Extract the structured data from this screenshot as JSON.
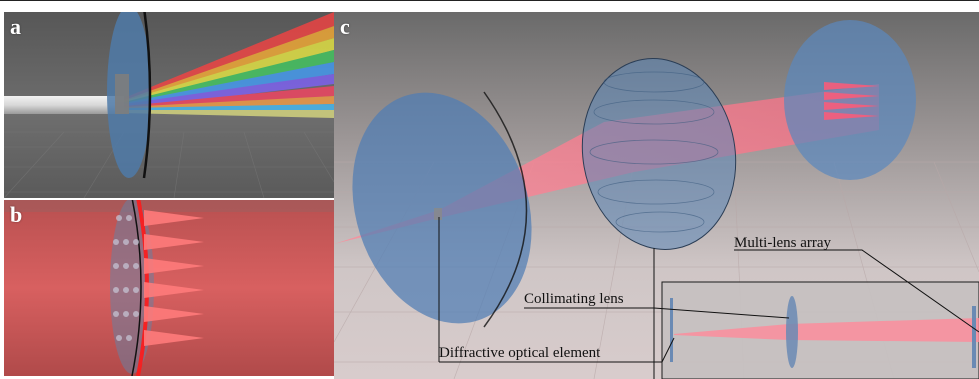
{
  "figure": {
    "panels": [
      {
        "id": "a",
        "label": "a"
      },
      {
        "id": "b",
        "label": "b"
      },
      {
        "id": "c",
        "label": "c"
      }
    ],
    "callouts": {
      "multi_lens_array": "Multi-lens array",
      "collimating_lens": "Collimating lens",
      "diffractive_optical_element": "Diffractive optical element"
    },
    "colors": {
      "lens_blue": "#5a86b8",
      "laser_red": "#ff5a6a",
      "floor_gray": "#c9c4c4",
      "background_gray": "#6b6b6b"
    }
  }
}
